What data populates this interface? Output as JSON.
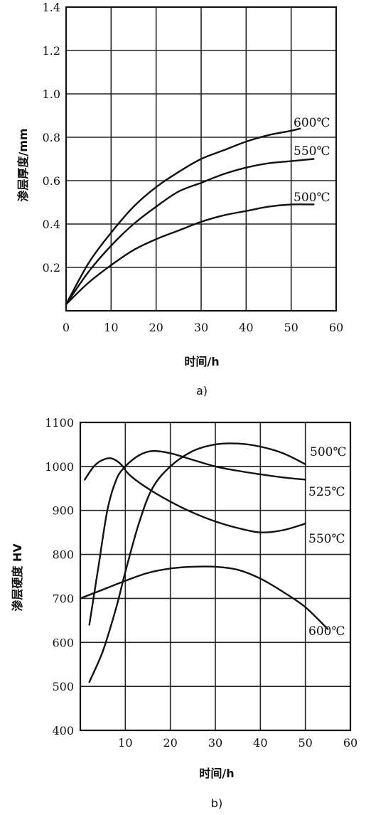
{
  "chart_data": [
    {
      "type": "line",
      "caption": "a)",
      "xlabel": "时间/h",
      "ylabel": "渗层厚度/mm",
      "xlim": [
        0,
        60
      ],
      "ylim": [
        0,
        1.4
      ],
      "x_ticks": [
        0,
        10,
        20,
        30,
        40,
        50,
        60
      ],
      "x_tick_labels": [
        "0",
        "10",
        "20",
        "30",
        "40",
        "50",
        "60"
      ],
      "y_ticks": [
        0.2,
        0.4,
        0.6,
        0.8,
        1.0,
        1.2,
        1.4
      ],
      "y_tick_labels": [
        "0.2",
        "0.4",
        "0.6",
        "0.8",
        "1.0",
        "1.2",
        "1.4"
      ],
      "grid": true,
      "series": [
        {
          "name": "600℃",
          "x": [
            0,
            5,
            10,
            15,
            20,
            25,
            30,
            35,
            40,
            45,
            50,
            52
          ],
          "y": [
            0.03,
            0.22,
            0.36,
            0.48,
            0.57,
            0.64,
            0.7,
            0.74,
            0.78,
            0.81,
            0.83,
            0.84
          ]
        },
        {
          "name": "550℃",
          "x": [
            0,
            5,
            10,
            15,
            20,
            25,
            30,
            35,
            40,
            45,
            50,
            55
          ],
          "y": [
            0.03,
            0.18,
            0.3,
            0.4,
            0.48,
            0.55,
            0.59,
            0.63,
            0.66,
            0.68,
            0.69,
            0.7
          ]
        },
        {
          "name": "500℃",
          "x": [
            0,
            5,
            10,
            15,
            20,
            25,
            30,
            35,
            40,
            45,
            50,
            55
          ],
          "y": [
            0.03,
            0.13,
            0.21,
            0.28,
            0.33,
            0.37,
            0.41,
            0.44,
            0.46,
            0.48,
            0.49,
            0.49
          ]
        }
      ]
    },
    {
      "type": "line",
      "caption": "b)",
      "xlabel": "时间/h",
      "ylabel": "渗层硬度 HV",
      "xlim": [
        0,
        60
      ],
      "ylim": [
        400,
        1100
      ],
      "x_ticks": [
        10,
        20,
        30,
        40,
        50,
        60
      ],
      "x_tick_labels": [
        "10",
        "20",
        "30",
        "40",
        "50",
        "60"
      ],
      "y_ticks": [
        400,
        500,
        600,
        700,
        800,
        900,
        1000,
        1100
      ],
      "y_tick_labels": [
        "400",
        "500",
        "600",
        "700",
        "800",
        "900",
        "1000",
        "1100"
      ],
      "grid": true,
      "series": [
        {
          "name": "500℃",
          "x": [
            2,
            5,
            8,
            10,
            13,
            16,
            20,
            25,
            30,
            35,
            40,
            45,
            50
          ],
          "y": [
            510,
            580,
            680,
            760,
            870,
            950,
            1000,
            1035,
            1050,
            1052,
            1045,
            1030,
            1005
          ]
        },
        {
          "name": "525℃",
          "x": [
            2,
            4,
            6,
            8,
            10,
            13,
            16,
            20,
            25,
            30,
            35,
            40,
            45,
            50
          ],
          "y": [
            640,
            770,
            900,
            970,
            1000,
            1025,
            1035,
            1030,
            1015,
            1000,
            990,
            982,
            975,
            970
          ]
        },
        {
          "name": "550℃",
          "x": [
            1,
            3,
            5,
            7,
            9,
            11,
            15,
            20,
            25,
            30,
            35,
            40,
            45,
            50
          ],
          "y": [
            970,
            1000,
            1015,
            1018,
            1005,
            980,
            950,
            920,
            895,
            875,
            860,
            850,
            855,
            870
          ]
        },
        {
          "name": "600℃",
          "x": [
            0,
            5,
            10,
            15,
            20,
            25,
            30,
            35,
            40,
            45,
            50,
            55
          ],
          "y": [
            700,
            720,
            740,
            758,
            768,
            772,
            772,
            765,
            745,
            715,
            680,
            630
          ]
        }
      ]
    }
  ]
}
